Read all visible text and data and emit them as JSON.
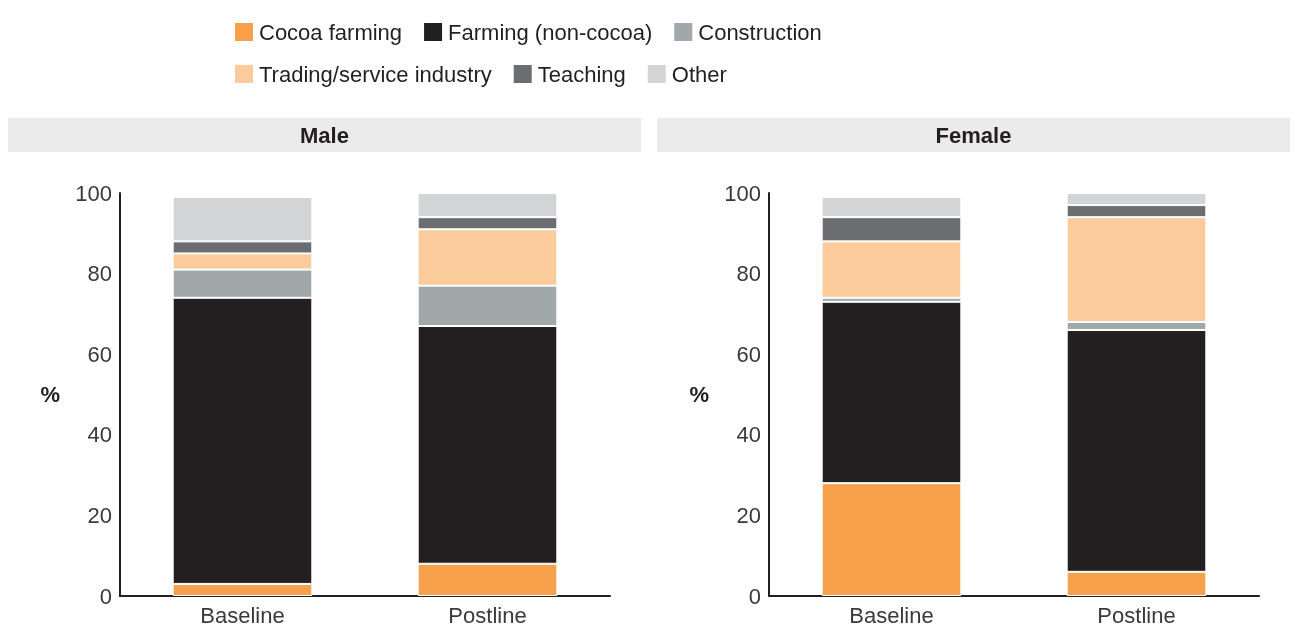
{
  "chart_data": [
    {
      "type": "bar",
      "title": "Male",
      "ylabel": "%",
      "categories": [
        "Baseline",
        "Postline"
      ],
      "stacked": true,
      "ylim": [
        0,
        100
      ],
      "yticks": [
        0,
        20,
        40,
        60,
        80,
        100
      ],
      "grid": false,
      "legend": "top",
      "series": [
        {
          "name": "Cocoa farming",
          "color": "#f7a14c",
          "values": [
            3,
            8
          ]
        },
        {
          "name": "Farming (non-cocoa)",
          "color": "#231f20",
          "values": [
            71,
            59
          ]
        },
        {
          "name": "Construction",
          "color": "#a1a8a9",
          "values": [
            7,
            10
          ]
        },
        {
          "name": "Trading/service industry",
          "color": "#fbcb9c",
          "values": [
            4,
            14
          ]
        },
        {
          "name": "Teaching",
          "color": "#6c6d70",
          "values": [
            3,
            3
          ]
        },
        {
          "name": "Other",
          "color": "#d3d4d6",
          "values": [
            11,
            6
          ]
        }
      ]
    },
    {
      "type": "bar",
      "title": "Female",
      "ylabel": "%",
      "categories": [
        "Baseline",
        "Postline"
      ],
      "stacked": true,
      "ylim": [
        0,
        100
      ],
      "yticks": [
        0,
        20,
        40,
        60,
        80,
        100
      ],
      "grid": false,
      "series": [
        {
          "color": "#f7a14c",
          "values": [
            28,
            6
          ]
        },
        {
          "color": "#231f20",
          "values": [
            45,
            60
          ]
        },
        {
          "color": "#a1a8a9",
          "values": [
            1,
            2
          ]
        },
        {
          "color": "#fbcb9c",
          "values": [
            14,
            26
          ]
        },
        {
          "color": "#6c6d70",
          "values": [
            6,
            3
          ]
        },
        {
          "color": "#d3d4d6",
          "values": [
            5,
            3
          ]
        }
      ]
    }
  ]
}
